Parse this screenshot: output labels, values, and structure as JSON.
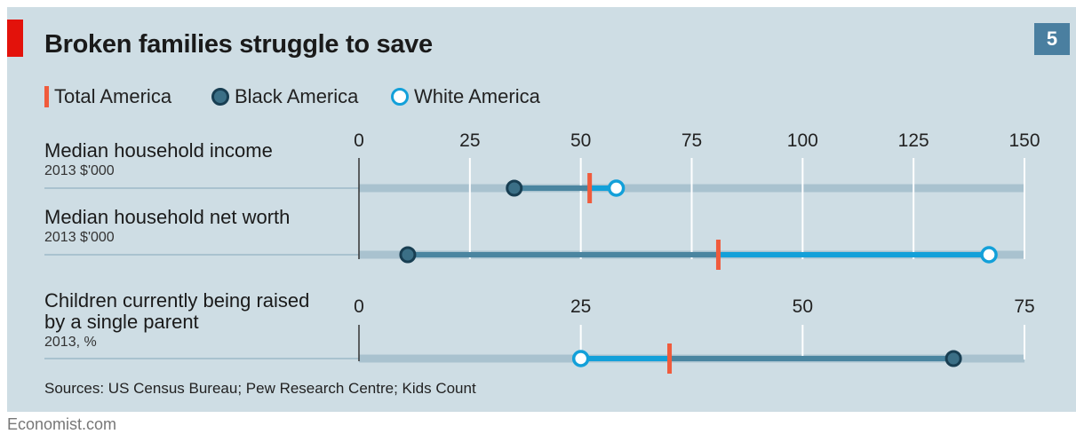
{
  "title": "Broken families struggle to save",
  "badge": "5",
  "legend": {
    "total": "Total America",
    "black": "Black America",
    "white": "White America"
  },
  "sources": "Sources: US Census Bureau; Pew Research Centre; Kids Count",
  "brand": "Economist.com",
  "colors": {
    "background": "#cedde4",
    "track": "#a9c2cf",
    "black_fill": "#3b6f86",
    "black_stroke": "#183e52",
    "black_bar": "#4a85a0",
    "white_stroke": "#13a0d9",
    "white_bar": "#13a0d9",
    "total_marker": "#f05b3c",
    "brand_red": "#e3120b"
  },
  "chart_data": [
    {
      "type": "dumbbell",
      "axis": {
        "min": 0,
        "max": 150,
        "ticks": [
          "0",
          "25",
          "50",
          "75",
          "100",
          "125",
          "150"
        ]
      },
      "rows": [
        {
          "label": "Median household income",
          "unit": "2013 $'000",
          "black": 35,
          "total": 52,
          "white": 58
        },
        {
          "label": "Median household net worth",
          "unit": "2013 $'000",
          "black": 11,
          "total": 81,
          "white": 142
        }
      ]
    },
    {
      "type": "dumbbell",
      "axis": {
        "min": 0,
        "max": 75,
        "ticks": [
          "0",
          "25",
          "50",
          "75"
        ]
      },
      "rows": [
        {
          "label": "Children currently being raised\nby a single parent",
          "unit": "2013, %",
          "black": 67,
          "total": 35,
          "white": 25
        }
      ]
    }
  ]
}
